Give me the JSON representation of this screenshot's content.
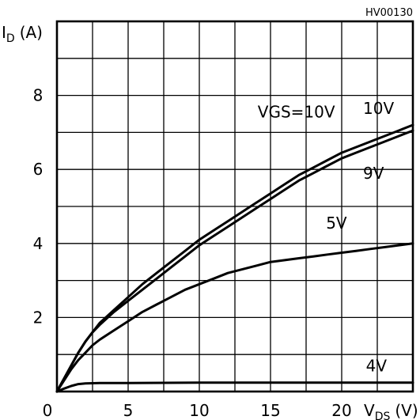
{
  "figure_code": "HV00130",
  "chart_data": {
    "type": "line",
    "ylabel_main": "I",
    "ylabel_sub": "D",
    "ylabel_unit": "(A)",
    "xlabel_main": "V",
    "xlabel_sub": "DS",
    "xlabel_unit": "(V)",
    "xlim": [
      0,
      25
    ],
    "ylim": [
      0,
      10
    ],
    "grid": true,
    "x_ticks": [
      {
        "value": 0,
        "label": "0"
      },
      {
        "value": 5,
        "label": "5"
      },
      {
        "value": 10,
        "label": "10"
      },
      {
        "value": 15,
        "label": "15"
      },
      {
        "value": 20,
        "label": "20"
      }
    ],
    "y_ticks": [
      {
        "value": 0,
        "label": ""
      },
      {
        "value": 2,
        "label": "2"
      },
      {
        "value": 4,
        "label": "4"
      },
      {
        "value": 6,
        "label": "6"
      },
      {
        "value": 8,
        "label": "8"
      }
    ],
    "legend_title": "VGS=10V",
    "series": [
      {
        "name": "10V",
        "points": [
          [
            0,
            0
          ],
          [
            0.5,
            0.35
          ],
          [
            1,
            0.7
          ],
          [
            1.5,
            1.05
          ],
          [
            2,
            1.35
          ],
          [
            2.5,
            1.6
          ],
          [
            3,
            1.85
          ],
          [
            4,
            2.2
          ],
          [
            5,
            2.55
          ],
          [
            6,
            2.9
          ],
          [
            7,
            3.2
          ],
          [
            8,
            3.5
          ],
          [
            9,
            3.8
          ],
          [
            10,
            4.1
          ],
          [
            11,
            4.35
          ],
          [
            12,
            4.6
          ],
          [
            13,
            4.85
          ],
          [
            14,
            5.1
          ],
          [
            15,
            5.35
          ],
          [
            16,
            5.6
          ],
          [
            17,
            5.85
          ],
          [
            18,
            6.05
          ],
          [
            19,
            6.25
          ],
          [
            20,
            6.45
          ],
          [
            21,
            6.6
          ],
          [
            22,
            6.75
          ],
          [
            23,
            6.9
          ],
          [
            24,
            7.05
          ],
          [
            25,
            7.2
          ]
        ]
      },
      {
        "name": "9V",
        "points": [
          [
            0,
            0
          ],
          [
            0.5,
            0.35
          ],
          [
            1,
            0.7
          ],
          [
            1.5,
            1.05
          ],
          [
            2,
            1.35
          ],
          [
            2.5,
            1.6
          ],
          [
            3,
            1.8
          ],
          [
            4,
            2.15
          ],
          [
            5,
            2.45
          ],
          [
            6,
            2.75
          ],
          [
            7,
            3.05
          ],
          [
            8,
            3.35
          ],
          [
            9,
            3.65
          ],
          [
            10,
            3.95
          ],
          [
            11,
            4.2
          ],
          [
            12,
            4.45
          ],
          [
            13,
            4.7
          ],
          [
            14,
            4.95
          ],
          [
            15,
            5.2
          ],
          [
            16,
            5.45
          ],
          [
            17,
            5.7
          ],
          [
            18,
            5.9
          ],
          [
            19,
            6.1
          ],
          [
            20,
            6.3
          ],
          [
            21,
            6.45
          ],
          [
            22,
            6.6
          ],
          [
            23,
            6.75
          ],
          [
            24,
            6.9
          ],
          [
            25,
            7.05
          ]
        ]
      },
      {
        "name": "5V",
        "points": [
          [
            0,
            0
          ],
          [
            0.5,
            0.3
          ],
          [
            1,
            0.6
          ],
          [
            1.5,
            0.85
          ],
          [
            2,
            1.05
          ],
          [
            2.5,
            1.25
          ],
          [
            3,
            1.4
          ],
          [
            4,
            1.65
          ],
          [
            5,
            1.9
          ],
          [
            6,
            2.15
          ],
          [
            7,
            2.35
          ],
          [
            8,
            2.55
          ],
          [
            9,
            2.75
          ],
          [
            10,
            2.9
          ],
          [
            11,
            3.05
          ],
          [
            12,
            3.2
          ],
          [
            13,
            3.3
          ],
          [
            14,
            3.4
          ],
          [
            15,
            3.5
          ],
          [
            16,
            3.55
          ],
          [
            17,
            3.6
          ],
          [
            18,
            3.65
          ],
          [
            19,
            3.7
          ],
          [
            20,
            3.75
          ],
          [
            21,
            3.8
          ],
          [
            22,
            3.85
          ],
          [
            23,
            3.9
          ],
          [
            24,
            3.95
          ],
          [
            25,
            4.0
          ]
        ]
      },
      {
        "name": "4V",
        "points": [
          [
            0,
            0
          ],
          [
            0.5,
            0.08
          ],
          [
            1,
            0.15
          ],
          [
            1.5,
            0.2
          ],
          [
            2,
            0.22
          ],
          [
            3,
            0.23
          ],
          [
            5,
            0.23
          ],
          [
            10,
            0.24
          ],
          [
            15,
            0.24
          ],
          [
            20,
            0.24
          ],
          [
            25,
            0.24
          ]
        ]
      }
    ],
    "curve_labels": [
      {
        "series": "10V",
        "text": "10V",
        "x": 21.5,
        "y": 7.5
      },
      {
        "series": "9V",
        "text": "9V",
        "x": 21.5,
        "y": 5.75
      },
      {
        "series": "5V",
        "text": "5V",
        "x": 18.9,
        "y": 4.4
      },
      {
        "series": "4V",
        "text": "4V",
        "x": 21.7,
        "y": 0.55
      }
    ],
    "legend_pos": {
      "x": 14.1,
      "y": 7.4
    }
  }
}
